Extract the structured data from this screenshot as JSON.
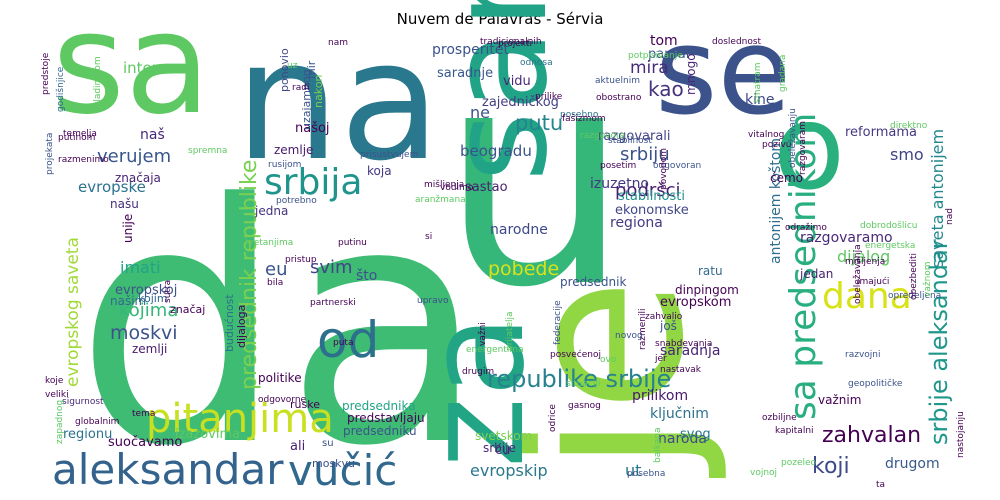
{
  "chart_data": {
    "type": "wordcloud",
    "title": "Nuvem de Palavras - Sérvia",
    "words": [
      {
        "text": "da",
        "weight": 100,
        "color": "#3fbc73"
      },
      {
        "text": "u",
        "weight": 88,
        "color": "#35b779"
      },
      {
        "text": "je",
        "weight": 76,
        "color": "#90d743"
      },
      {
        "text": "na",
        "weight": 68,
        "color": "#2a788e"
      },
      {
        "text": "sa",
        "weight": 66,
        "color": "#5ec962"
      },
      {
        "text": "se",
        "weight": 58,
        "color": "#3b528b"
      },
      {
        "text": "za",
        "weight": 54,
        "color": "#21a585"
      },
      {
        "text": "sam",
        "weight": 50,
        "color": "#20a386"
      },
      {
        "text": "o",
        "weight": 50,
        "color": "#2ab07f"
      },
      {
        "text": "aleksandar",
        "weight": 24,
        "color": "#33638d"
      },
      {
        "text": "vučić",
        "weight": 24,
        "color": "#31688e"
      },
      {
        "text": "pitanjima",
        "weight": 22,
        "color": "#c8e020"
      },
      {
        "text": "sa predsednikom",
        "weight": 20,
        "color": "#29af7f"
      },
      {
        "text": "od",
        "weight": 20,
        "color": "#2d708e"
      },
      {
        "text": "srbija",
        "weight": 19,
        "color": "#1f948c"
      },
      {
        "text": "dana",
        "weight": 18,
        "color": "#d8e219"
      },
      {
        "text": "republike srbije",
        "weight": 13,
        "color": "#26828e"
      },
      {
        "text": "srbije aleksandar",
        "weight": 13,
        "color": "#1f978b"
      },
      {
        "text": "predsednik republike",
        "weight": 12,
        "color": "#7ad151"
      },
      {
        "text": "zahvalan",
        "weight": 11,
        "color": "#440154"
      },
      {
        "text": "koji",
        "weight": 11,
        "color": "#3e4989"
      },
      {
        "text": "evropskip",
        "weight": 10,
        "color": "#2a788e"
      },
      {
        "text": "ut",
        "weight": 10,
        "color": "#2a788e"
      },
      {
        "text": "evropskog saveta",
        "weight": 10,
        "color": "#a0da39"
      },
      {
        "text": "moskvi",
        "weight": 10,
        "color": "#3b528b"
      },
      {
        "text": "pobede",
        "weight": 10,
        "color": "#d8e219"
      },
      {
        "text": "putu",
        "weight": 10,
        "color": "#25858e"
      },
      {
        "text": "srbiju",
        "weight": 10,
        "color": "#3b528b"
      },
      {
        "text": "podršci",
        "weight": 10,
        "color": "#481f70"
      },
      {
        "text": "kojima",
        "weight": 9,
        "color": "#35b779"
      },
      {
        "text": "saveta antonijem",
        "weight": 9,
        "color": "#23888e"
      },
      {
        "text": "dijalog",
        "weight": 9,
        "color": "#5ec962"
      },
      {
        "text": "antonijem koštom",
        "weight": 9,
        "color": "#2e6e8e"
      },
      {
        "text": "verujem",
        "weight": 9,
        "color": "#39568c"
      },
      {
        "text": "kao",
        "weight": 9,
        "color": "#46337e"
      },
      {
        "text": "mira",
        "weight": 9,
        "color": "#472c7a"
      },
      {
        "text": "svim",
        "weight": 9,
        "color": "#404688"
      },
      {
        "text": "eu",
        "weight": 9,
        "color": "#3b528b"
      },
      {
        "text": "smo",
        "weight": 9,
        "color": "#414487"
      },
      {
        "text": "imati",
        "weight": 8,
        "color": "#20a386"
      },
      {
        "text": "interesa",
        "weight": 8,
        "color": "#5ec962"
      },
      {
        "text": "evropske",
        "weight": 8,
        "color": "#2c728e"
      },
      {
        "text": "naš",
        "weight": 8,
        "color": "#482878"
      },
      {
        "text": "što",
        "weight": 8,
        "color": "#3b528b"
      },
      {
        "text": "ne",
        "weight": 8,
        "color": "#3b528b"
      },
      {
        "text": "tom",
        "weight": 8,
        "color": "#440154"
      },
      {
        "text": "saradnja",
        "weight": 8,
        "color": "#482475"
      },
      {
        "text": "prilikom",
        "weight": 8,
        "color": "#481a6c"
      },
      {
        "text": "naroda",
        "weight": 8,
        "color": "#3e4989"
      },
      {
        "text": "ključnim",
        "weight": 8,
        "color": "#2c728e"
      },
      {
        "text": "drugom",
        "weight": 8,
        "color": "#38588c"
      },
      {
        "text": "svog",
        "weight": 7,
        "color": "#2a788e"
      },
      {
        "text": "beogradu",
        "weight": 7,
        "color": "#3b528b"
      },
      {
        "text": "regiona",
        "weight": 7,
        "color": "#443983"
      },
      {
        "text": "ekonomske",
        "weight": 7,
        "color": "#404688"
      },
      {
        "text": "stabilnosti",
        "weight": 7,
        "color": "#21918c"
      },
      {
        "text": "izuzetno",
        "weight": 7,
        "color": "#453781"
      },
      {
        "text": "sastao",
        "weight": 7,
        "color": "#481f70"
      },
      {
        "text": "narodne",
        "weight": 7,
        "color": "#3e4989"
      },
      {
        "text": "prosperitet",
        "weight": 7,
        "color": "#3b528b"
      },
      {
        "text": "saradnje",
        "weight": 7,
        "color": "#39568c"
      },
      {
        "text": "vidu",
        "weight": 7,
        "color": "#482878"
      },
      {
        "text": "zajedničkog",
        "weight": 7,
        "color": "#433e85"
      },
      {
        "text": "razgovarali",
        "weight": 7,
        "color": "#414487"
      },
      {
        "text": "kine",
        "weight": 7,
        "color": "#3e4989"
      },
      {
        "text": "reformama",
        "weight": 7,
        "color": "#443983"
      },
      {
        "text": "paradi",
        "weight": 7,
        "color": "#3b528b"
      },
      {
        "text": "mnogo",
        "weight": 6,
        "color": "#482475"
      },
      {
        "text": "našoj",
        "weight": 7,
        "color": "#440154"
      },
      {
        "text": "zemlje",
        "weight": 6,
        "color": "#481a6c"
      },
      {
        "text": "evropskoj",
        "weight": 6,
        "color": "#3b528b"
      },
      {
        "text": "našim",
        "weight": 6,
        "color": "#31688e"
      },
      {
        "text": "značaja",
        "weight": 6,
        "color": "#482475"
      },
      {
        "text": "našu",
        "weight": 6,
        "color": "#472d7b"
      },
      {
        "text": "jedna",
        "weight": 6,
        "color": "#46337e"
      },
      {
        "text": "koja",
        "weight": 6,
        "color": "#453781"
      },
      {
        "text": "unije",
        "weight": 6,
        "color": "#440154"
      },
      {
        "text": "predsednik",
        "weight": 6,
        "color": "#3b528b"
      },
      {
        "text": "dinpingom",
        "weight": 6,
        "color": "#440154"
      },
      {
        "text": "ratu",
        "weight": 6,
        "color": "#31688e"
      },
      {
        "text": "evropskom",
        "weight": 6,
        "color": "#440154"
      },
      {
        "text": "jedan",
        "weight": 6,
        "color": "#481f70"
      },
      {
        "text": "razgovaramo",
        "weight": 6,
        "color": "#482878"
      },
      {
        "text": "još",
        "weight": 6,
        "color": "#39568c"
      },
      {
        "text": "ću",
        "weight": 6,
        "color": "#482475"
      },
      {
        "text": "srbije",
        "weight": 6,
        "color": "#482878"
      },
      {
        "text": "svetskom",
        "weight": 6,
        "color": "#7ad151"
      },
      {
        "text": "suočavamo",
        "weight": 6,
        "color": "#440154"
      },
      {
        "text": "regionu",
        "weight": 6,
        "color": "#2c728e"
      },
      {
        "text": "ali",
        "weight": 6,
        "color": "#481f70"
      },
      {
        "text": "izazovima",
        "weight": 6,
        "color": "#5ec962"
      },
      {
        "text": "predsednika",
        "weight": 6,
        "color": "#20a386"
      },
      {
        "text": "predstavljaju",
        "weight": 6,
        "color": "#450559"
      },
      {
        "text": "predsedniku",
        "weight": 6,
        "color": "#3b528b"
      },
      {
        "text": "važnim",
        "weight": 6,
        "color": "#440154"
      },
      {
        "text": "ćemo",
        "weight": 5,
        "color": "#440154"
      },
      {
        "text": "budućnost",
        "weight": 5,
        "color": "#2c728e"
      },
      {
        "text": "dijaloga",
        "weight": 5,
        "color": "#440154"
      },
      {
        "text": "uzajamnog",
        "weight": 5,
        "color": "#3b528b"
      },
      {
        "text": "mir",
        "weight": 5,
        "color": "#3b528b"
      },
      {
        "text": "nakon",
        "weight": 5,
        "color": "#7ad151"
      },
      {
        "text": "ponovio",
        "weight": 5,
        "color": "#3e4989"
      },
      {
        "text": "zemlji",
        "weight": 5,
        "color": "#481a6c"
      },
      {
        "text": "kojim",
        "weight": 5,
        "color": "#31688e"
      },
      {
        "text": "značaj",
        "weight": 5,
        "color": "#440154"
      },
      {
        "text": "politike",
        "weight": 5,
        "color": "#440154"
      },
      {
        "text": "ruske",
        "weight": 4,
        "color": "#440154"
      },
      {
        "text": "koje",
        "weight": 4,
        "color": "#440154"
      },
      {
        "text": "veliki",
        "weight": 4,
        "color": "#440154"
      },
      {
        "text": "sigurnost",
        "weight": 4,
        "color": "#482878"
      },
      {
        "text": "globalnim",
        "weight": 4,
        "color": "#440154"
      },
      {
        "text": "su",
        "weight": 4,
        "color": "#3b528b"
      },
      {
        "text": "moskvu",
        "weight": 4,
        "color": "#3b528b"
      },
      {
        "text": "temelja",
        "weight": 4,
        "color": "#440154"
      },
      {
        "text": "godišnjice",
        "weight": 4,
        "color": "#31688e"
      },
      {
        "text": "projekata",
        "weight": 5,
        "color": "#3b528b"
      },
      {
        "text": "predstoje",
        "weight": 4,
        "color": "#440154"
      },
      {
        "text": "razmenimo",
        "weight": 4,
        "color": "#440154"
      },
      {
        "text": "putinom",
        "weight": 4,
        "color": "#440154"
      },
      {
        "text": "spremna",
        "weight": 4,
        "color": "#5ec962"
      },
      {
        "text": "vladimirom",
        "weight": 4,
        "color": "#5ec962"
      },
      {
        "text": "nam",
        "weight": 4,
        "color": "#440154"
      },
      {
        "text": "uz",
        "weight": 4,
        "color": "#5ec962"
      },
      {
        "text": "radi",
        "weight": 4,
        "color": "#440154"
      },
      {
        "text": "tradicionalnih",
        "weight": 4,
        "color": "#440154"
      },
      {
        "text": "projekti",
        "weight": 4,
        "color": "#440154"
      },
      {
        "text": "odnosa",
        "weight": 4,
        "color": "#2c728e"
      },
      {
        "text": "prilike",
        "weight": 4,
        "color": "#440154"
      },
      {
        "text": "posebno",
        "weight": 4,
        "color": "#2c728e"
      },
      {
        "text": "fašizmom",
        "weight": 4,
        "color": "#440154"
      },
      {
        "text": "razgovora",
        "weight": 4,
        "color": "#5ec962"
      },
      {
        "text": "stabilnost",
        "weight": 4,
        "color": "#3b528b"
      },
      {
        "text": "posetim",
        "weight": 4,
        "color": "#440154"
      },
      {
        "text": "prisustvujem",
        "weight": 4,
        "color": "#3b528b"
      },
      {
        "text": "mišljenja",
        "weight": 4,
        "color": "#440154"
      },
      {
        "text": "vodimo",
        "weight": 4,
        "color": "#440154"
      },
      {
        "text": "aranžmana",
        "weight": 4,
        "color": "#5ec962"
      },
      {
        "text": "rusijom",
        "weight": 4,
        "color": "#3b528b"
      },
      {
        "text": "potrebno",
        "weight": 4,
        "color": "#3b528b"
      },
      {
        "text": "potpisivanje",
        "weight": 4,
        "color": "#5ec962"
      },
      {
        "text": "aktuelnim",
        "weight": 4,
        "color": "#3b528b"
      },
      {
        "text": "obostrano",
        "weight": 4,
        "color": "#440154"
      },
      {
        "text": "doslednost",
        "weight": 4,
        "color": "#440154"
      },
      {
        "text": "smatram",
        "weight": 4,
        "color": "#5ec962"
      },
      {
        "text": "gradana",
        "weight": 4,
        "color": "#5ec962"
      },
      {
        "text": "vitalnog",
        "weight": 4,
        "color": "#440154"
      },
      {
        "text": "pozivu",
        "weight": 4,
        "color": "#440154"
      },
      {
        "text": "direktno",
        "weight": 4,
        "color": "#5ec962"
      },
      {
        "text": "odgovoran",
        "weight": 4,
        "color": "#3b528b"
      },
      {
        "text": "povodom",
        "weight": 4,
        "color": "#440154"
      },
      {
        "text": "obeležavanju",
        "weight": 4,
        "color": "#3b528b"
      },
      {
        "text": "razgovaram",
        "weight": 4,
        "color": "#440154"
      },
      {
        "text": "nad",
        "weight": 4,
        "color": "#440154"
      },
      {
        "text": "odražimo",
        "weight": 4,
        "color": "#440154"
      },
      {
        "text": "dobrodošlicu",
        "weight": 4,
        "color": "#5ec962"
      },
      {
        "text": "energetska",
        "weight": 4,
        "color": "#5ec962"
      },
      {
        "text": "mišljenja",
        "weight": 4,
        "color": "#440154"
      },
      {
        "text": "obeležavanja",
        "weight": 5,
        "color": "#440154"
      },
      {
        "text": "opredeljena",
        "weight": 4,
        "color": "#3b528b"
      },
      {
        "text": "imajući",
        "weight": 4,
        "color": "#440154"
      },
      {
        "text": "obezbediti",
        "weight": 4,
        "color": "#440154"
      },
      {
        "text": "važnom",
        "weight": 4,
        "color": "#5ec962"
      },
      {
        "text": "razvojni",
        "weight": 4,
        "color": "#3b528b"
      },
      {
        "text": "geopolitičke",
        "weight": 4,
        "color": "#3b528b"
      },
      {
        "text": "ozbiljne",
        "weight": 4,
        "color": "#440154"
      },
      {
        "text": "kapitalni",
        "weight": 4,
        "color": "#440154"
      },
      {
        "text": "nastojanju",
        "weight": 4,
        "color": "#440154"
      },
      {
        "text": "pozeleo",
        "weight": 4,
        "color": "#5ec962"
      },
      {
        "text": "vojnoj",
        "weight": 4,
        "color": "#5ec962"
      },
      {
        "text": "ta",
        "weight": 4,
        "color": "#440154"
      },
      {
        "text": "posebna",
        "weight": 4,
        "color": "#3b528b"
      },
      {
        "text": "balkana",
        "weight": 4,
        "color": "#5ec962"
      },
      {
        "text": "si",
        "weight": 4,
        "color": "#440154"
      },
      {
        "text": "putinu",
        "weight": 4,
        "color": "#440154"
      },
      {
        "text": "kretanjima",
        "weight": 4,
        "color": "#5ec962"
      },
      {
        "text": "pristup",
        "weight": 4,
        "color": "#440154"
      },
      {
        "text": "bila",
        "weight": 4,
        "color": "#440154"
      },
      {
        "text": "partnerski",
        "weight": 4,
        "color": "#440154"
      },
      {
        "text": "upravo",
        "weight": 4,
        "color": "#3b528b"
      },
      {
        "text": "posvećenoj",
        "weight": 4,
        "color": "#440154"
      },
      {
        "text": "važni",
        "weight": 4,
        "color": "#440154"
      },
      {
        "text": "prijatelja",
        "weight": 4,
        "color": "#5ec962"
      },
      {
        "text": "federacije",
        "weight": 4,
        "color": "#3b528b"
      },
      {
        "text": "razmenili",
        "weight": 4,
        "color": "#440154"
      },
      {
        "text": "zahvalio",
        "weight": 4,
        "color": "#440154"
      },
      {
        "text": "jer",
        "weight": 4,
        "color": "#440154"
      },
      {
        "text": "nastavak",
        "weight": 4,
        "color": "#440154"
      },
      {
        "text": "snabdevanja",
        "weight": 4,
        "color": "#440154"
      },
      {
        "text": "ovo",
        "weight": 4,
        "color": "#5ec962"
      },
      {
        "text": "novog",
        "weight": 4,
        "color": "#3b528b"
      },
      {
        "text": "drugim",
        "weight": 4,
        "color": "#440154"
      },
      {
        "text": "energentima",
        "weight": 4,
        "color": "#5ec962"
      },
      {
        "text": "situaciji",
        "weight": 4,
        "color": "#5ec962"
      },
      {
        "text": "gasnog",
        "weight": 4,
        "color": "#440154"
      },
      {
        "text": "odrice",
        "weight": 4,
        "color": "#440154"
      },
      {
        "text": "odgovorne",
        "weight": 4,
        "color": "#440154"
      },
      {
        "text": "sutra",
        "weight": 4,
        "color": "#440154"
      },
      {
        "text": "tema",
        "weight": 4,
        "color": "#440154"
      },
      {
        "text": "puta",
        "weight": 4,
        "color": "#440154"
      },
      {
        "text": "zapadnog",
        "weight": 4,
        "color": "#5ec962"
      }
    ]
  }
}
